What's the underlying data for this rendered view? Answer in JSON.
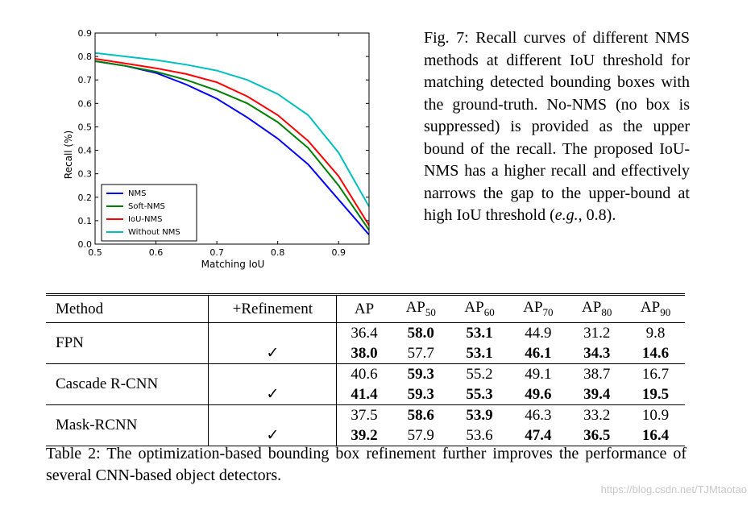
{
  "chart_data": {
    "type": "line",
    "xlabel": "Matching IoU",
    "ylabel": "Recall (%)",
    "xlim": [
      0.5,
      0.95
    ],
    "ylim": [
      0.0,
      0.9
    ],
    "xticks": [
      "0.5",
      "0.6",
      "0.7",
      "0.8",
      "0.9"
    ],
    "yticks": [
      "0.0",
      "0.1",
      "0.2",
      "0.3",
      "0.4",
      "0.5",
      "0.6",
      "0.7",
      "0.8",
      "0.9"
    ],
    "x": [
      0.5,
      0.55,
      0.6,
      0.65,
      0.7,
      0.75,
      0.8,
      0.85,
      0.9,
      0.95
    ],
    "legend_position": "lower-left",
    "grid": false,
    "series": [
      {
        "name": "NMS",
        "color": "#0000ff",
        "values": [
          0.78,
          0.76,
          0.73,
          0.68,
          0.62,
          0.54,
          0.45,
          0.34,
          0.19,
          0.04
        ]
      },
      {
        "name": "Soft-NMS",
        "color": "#007f00",
        "values": [
          0.78,
          0.76,
          0.735,
          0.7,
          0.655,
          0.6,
          0.52,
          0.41,
          0.25,
          0.06
        ]
      },
      {
        "name": "IoU-NMS",
        "color": "#ff0000",
        "values": [
          0.79,
          0.77,
          0.75,
          0.725,
          0.69,
          0.63,
          0.55,
          0.44,
          0.29,
          0.08
        ]
      },
      {
        "name": "Without NMS",
        "color": "#00bfbf",
        "values": [
          0.815,
          0.8,
          0.785,
          0.765,
          0.74,
          0.7,
          0.64,
          0.55,
          0.39,
          0.16
        ]
      }
    ]
  },
  "figure_caption": {
    "label": "Fig. 7:",
    "text_before": "Recall curves of different NMS methods at different IoU threshold for matching detected bounding boxes with the ground-truth. No-NMS (no box is suppressed) is provided as the upper bound of the recall. The proposed IoU-NMS has a higher recall and effectively narrows the gap to the upper-bound at high IoU threshold (",
    "eg": "e.g.",
    "text_after": ", 0.8)."
  },
  "table": {
    "headers": {
      "method": "Method",
      "refinement": "+Refinement",
      "ap": "AP",
      "ap_base": "AP",
      "ap50_sub": "50",
      "ap60_sub": "60",
      "ap70_sub": "70",
      "ap80_sub": "80",
      "ap90_sub": "90"
    },
    "check": "✓",
    "groups": [
      {
        "method": "FPN",
        "base": [
          "36.4",
          "58.0",
          "53.1",
          "44.9",
          "31.2",
          "9.8"
        ],
        "refined": [
          "38.0",
          "57.7",
          "53.1",
          "46.1",
          "34.3",
          "14.6"
        ]
      },
      {
        "method": "Cascade R-CNN",
        "base": [
          "40.6",
          "59.3",
          "55.2",
          "49.1",
          "38.7",
          "16.7"
        ],
        "refined": [
          "41.4",
          "59.3",
          "55.3",
          "49.6",
          "39.4",
          "19.5"
        ]
      },
      {
        "method": "Mask-RCNN",
        "base": [
          "37.5",
          "58.6",
          "53.9",
          "46.3",
          "33.2",
          "10.9"
        ],
        "refined": [
          "39.2",
          "57.9",
          "53.6",
          "47.4",
          "36.5",
          "16.4"
        ]
      }
    ]
  },
  "table_caption": "Table 2: The optimization-based bounding box refinement further improves the performance of several CNN-based object detectors.",
  "watermark": "https://blog.csdn.net/TJMtaotao"
}
